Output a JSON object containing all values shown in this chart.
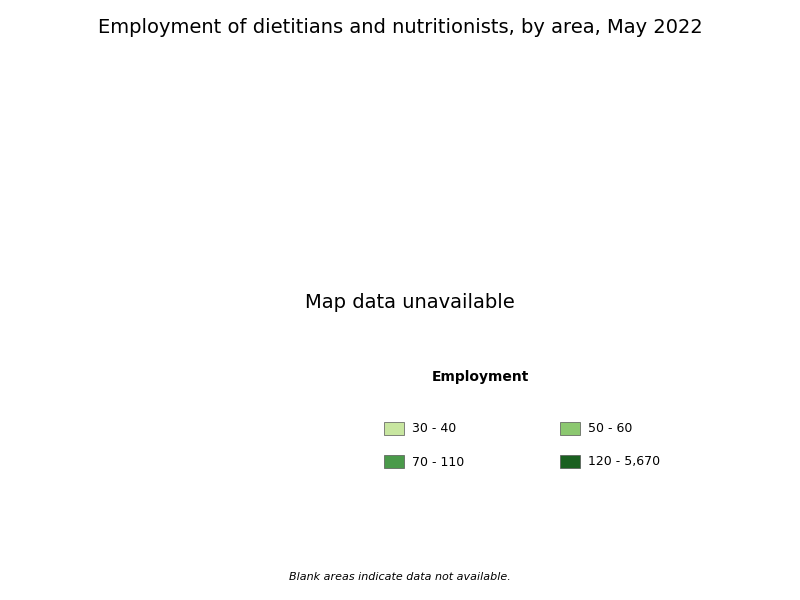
{
  "title": "Employment of dietitians and nutritionists, by area, May 2022",
  "title_fontsize": 14,
  "legend_title": "Employment",
  "legend_title_fontsize": 10,
  "legend_fontsize": 9,
  "legend_entries": [
    {
      "label": "30 - 40",
      "color": "#c8e6a0"
    },
    {
      "label": "50 - 60",
      "color": "#8cc870"
    },
    {
      "label": "70 - 110",
      "color": "#4a9a4a"
    },
    {
      "label": "120 - 5,670",
      "color": "#1a6020"
    }
  ],
  "blank_note": "Blank areas indicate data not available.",
  "background_color": "#ffffff",
  "map_edge_color": "#333333",
  "map_edge_width": 0.3,
  "no_data_color": "#ffffff",
  "figsize": [
    8.0,
    6.0
  ],
  "dpi": 100
}
